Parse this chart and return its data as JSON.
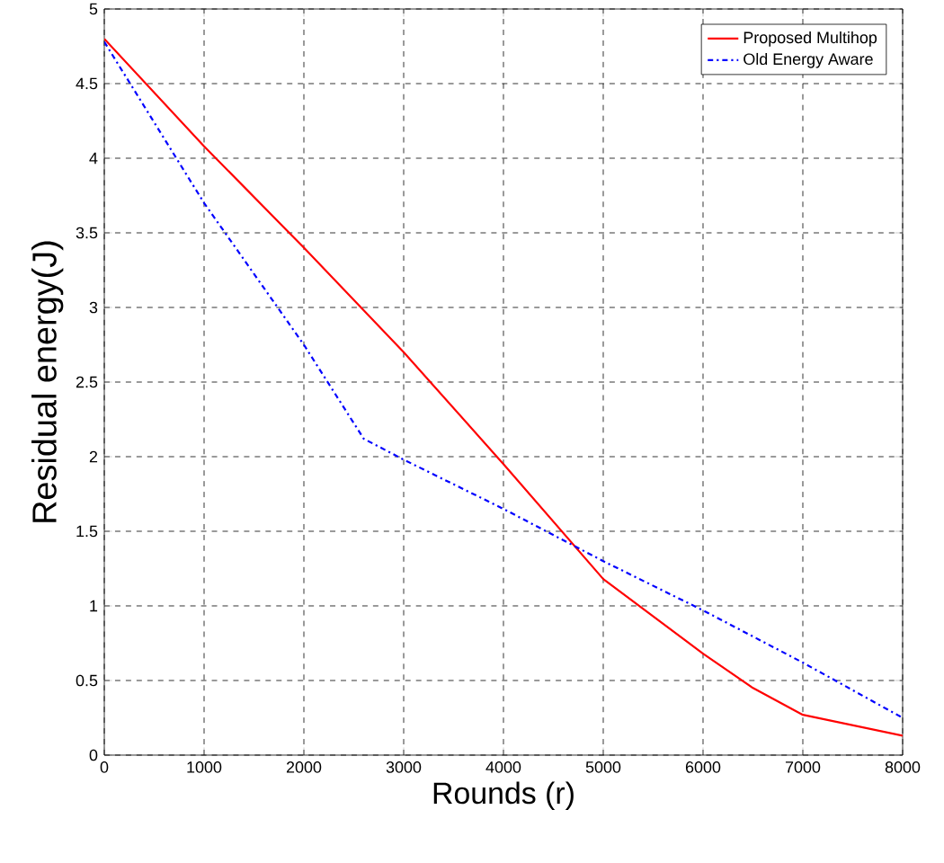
{
  "chart_data": {
    "type": "line",
    "xlabel": "Rounds (r)",
    "ylabel": "Residual energy(J)",
    "xlim": [
      0,
      8000
    ],
    "xticks": [
      0,
      1000,
      2000,
      3000,
      4000,
      5000,
      6000,
      7000,
      8000
    ],
    "ylim": [
      0,
      5
    ],
    "yticks": [
      0,
      0.5,
      1,
      1.5,
      2,
      2.5,
      3,
      3.5,
      4,
      4.5,
      5
    ],
    "grid": true,
    "legend": "top right",
    "series": [
      {
        "name": "Proposed Multihop",
        "color": "#ff0000",
        "line_style": "solid",
        "x": [
          0,
          1000,
          2000,
          3000,
          4000,
          5000,
          6000,
          6500,
          7000,
          8000
        ],
        "values": [
          4.8,
          4.08,
          3.4,
          2.7,
          1.95,
          1.18,
          0.68,
          0.45,
          0.27,
          0.13
        ]
      },
      {
        "name": "Old Energy Aware",
        "color": "#0000ff",
        "line_style": "dashed",
        "x": [
          0,
          1000,
          2000,
          2600,
          3000,
          4000,
          5000,
          6000,
          7000,
          8000
        ],
        "values": [
          4.78,
          3.7,
          2.75,
          2.12,
          1.98,
          1.65,
          1.3,
          0.97,
          0.62,
          0.25
        ]
      }
    ]
  }
}
